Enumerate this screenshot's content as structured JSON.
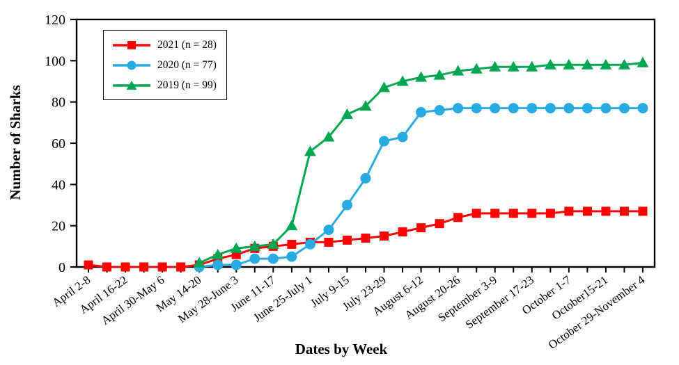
{
  "chart_data": {
    "type": "line",
    "title": "",
    "xlabel": "Dates by Week",
    "ylabel": "Number of Sharks",
    "ylim": [
      0,
      120
    ],
    "yticks": [
      0,
      20,
      40,
      60,
      80,
      100,
      120
    ],
    "n_points": 31,
    "label_every": 2,
    "grid": false,
    "legend_position": "top-left",
    "axis_color": "#000000",
    "x_tick_labels": [
      "April 2-8",
      "April 16-22",
      "April 30-May 6",
      "May 14-20",
      "May 28-June 3",
      "June 11-17",
      "June 25-July 1",
      "July 9-15",
      "July 23-29",
      "August 6-12",
      "August 20-26",
      "September 3-9",
      "September 17-23",
      "October 1-7",
      "October15-21",
      "October 29-November 4"
    ],
    "series": [
      {
        "name": "2021",
        "legend_label": "2021 (n = 28)",
        "color": "#fe0000",
        "marker": "square",
        "values": [
          1,
          0,
          0,
          0,
          0,
          0,
          1,
          4,
          6,
          9,
          10,
          11,
          12,
          12,
          13,
          14,
          15,
          17,
          19,
          21,
          24,
          26,
          26,
          26,
          26,
          26,
          27,
          27,
          27,
          27,
          27
        ]
      },
      {
        "name": "2020",
        "legend_label": "2020 (n = 77)",
        "color": "#29abe2",
        "marker": "circle",
        "values": [
          null,
          null,
          null,
          null,
          null,
          null,
          0,
          1,
          1,
          4,
          4,
          5,
          11,
          18,
          30,
          43,
          61,
          63,
          75,
          76,
          77,
          77,
          77,
          77,
          77,
          77,
          77,
          77,
          77,
          77,
          77
        ]
      },
      {
        "name": "2019",
        "legend_label": "2019 (n = 99)",
        "color": "#00a651",
        "marker": "triangle",
        "values": [
          null,
          null,
          null,
          null,
          null,
          null,
          2,
          6,
          9,
          10,
          11,
          20,
          56,
          63,
          74,
          78,
          87,
          90,
          92,
          93,
          95,
          96,
          97,
          97,
          97,
          98,
          98,
          98,
          98,
          98,
          99
        ]
      }
    ]
  }
}
